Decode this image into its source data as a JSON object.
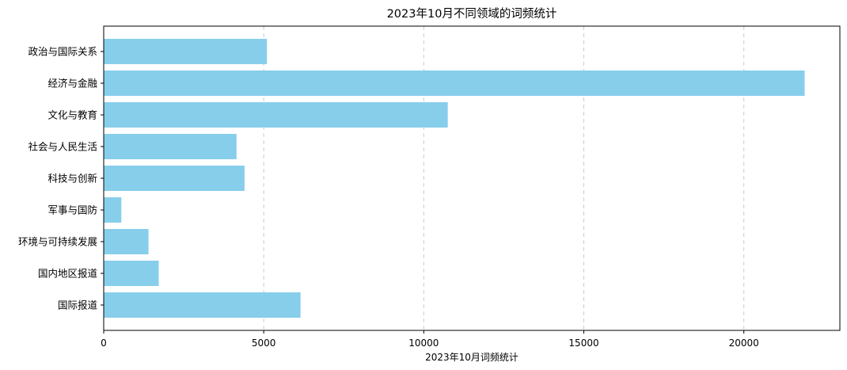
{
  "chart_data": {
    "type": "bar",
    "orientation": "horizontal",
    "title": "2023年10月不同领域的词频统计",
    "xlabel": "2023年10月词频统计",
    "ylabel": "",
    "categories": [
      "政治与国际关系",
      "经济与金融",
      "文化与教育",
      "社会与人民生活",
      "科技与创新",
      "军事与国防",
      "环境与可持续发展",
      "国内地区报道",
      "国际报道"
    ],
    "values": [
      5100,
      21900,
      10750,
      4150,
      4400,
      550,
      1400,
      1720,
      6150
    ],
    "xlim": [
      0,
      23000
    ],
    "xticks": [
      0,
      5000,
      10000,
      15000,
      20000
    ],
    "xtick_labels": [
      "0",
      "5000",
      "10000",
      "15000",
      "20000"
    ],
    "grid": "x-dashed",
    "bar_color": "#87ceeb"
  }
}
